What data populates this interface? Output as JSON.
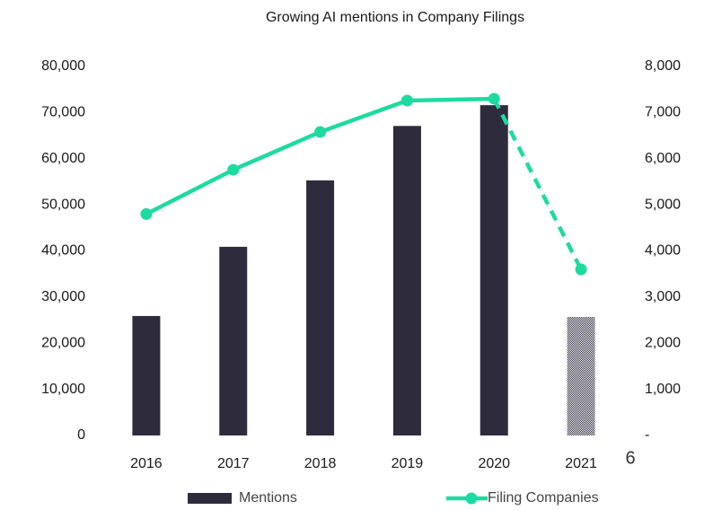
{
  "chart_data": {
    "type": "bar_line",
    "title": "Growing AI mentions in Company Filings",
    "categories": [
      "2016",
      "2017",
      "2018",
      "2019",
      "2020",
      "2021"
    ],
    "series": [
      {
        "name": "Mentions",
        "type": "bar",
        "color": "#2e2b3d",
        "values": [
          25900,
          40900,
          55300,
          67100,
          71600,
          25700
        ],
        "projected": [
          false,
          false,
          false,
          false,
          false,
          true
        ]
      },
      {
        "name": "Filing Companies",
        "type": "line",
        "axis": "y2",
        "color": "#1ddba0",
        "values": [
          4800,
          5760,
          6580,
          7260,
          7300,
          3600
        ],
        "projected": [
          false,
          false,
          false,
          false,
          false,
          true
        ]
      }
    ],
    "ylim": [
      0,
      80000
    ],
    "yticks": [
      0,
      {
        "value": 10000,
        "label": "10,000"
      },
      {
        "value": 20000,
        "label": "20,000"
      },
      {
        "value": 30000,
        "label": "30,000"
      },
      {
        "value": 40000,
        "label": "40,000"
      },
      {
        "value": 50000,
        "label": "50,000"
      },
      {
        "value": 60000,
        "label": "60,000"
      },
      {
        "value": 70000,
        "label": "70,000"
      },
      {
        "value": 80000,
        "label": "80,000"
      }
    ],
    "y2lim": [
      0,
      8000
    ],
    "y2ticks": [
      {
        "value": 0,
        "label": "-"
      },
      {
        "value": 1000,
        "label": "1,000"
      },
      {
        "value": 2000,
        "label": "2,000"
      },
      {
        "value": 3000,
        "label": "3,000"
      },
      {
        "value": 4000,
        "label": "4,000"
      },
      {
        "value": 5000,
        "label": "5,000"
      },
      {
        "value": 6000,
        "label": "6,000"
      },
      {
        "value": 7000,
        "label": "7,000"
      },
      {
        "value": 8000,
        "label": "8,000"
      }
    ],
    "grid": false,
    "legend": "bottom"
  },
  "page_number": "6"
}
